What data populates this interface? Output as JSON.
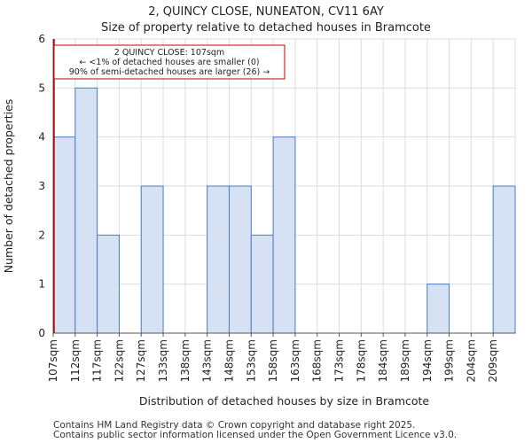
{
  "header": {
    "title": "2, QUINCY CLOSE, NUNEATON, CV11 6AY",
    "subtitle": "Size of property relative to detached houses in Bramcote"
  },
  "footer": {
    "line1": "Contains HM Land Registry data © Crown copyright and database right 2025.",
    "line2": "Contains public sector information licensed under the Open Government Licence v3.0."
  },
  "colors": {
    "bar_fill": "#d6e2f3",
    "bar_stroke": "#4a7cc7",
    "marker": "#c00000",
    "grid": "#d9dde6"
  },
  "chart_data": {
    "type": "bar",
    "title": "Size of property relative to detached houses in Bramcote",
    "xlabel": "Distribution of detached houses by size in Bramcote",
    "ylabel": "Number of detached properties",
    "categories": [
      "107sqm",
      "112sqm",
      "117sqm",
      "122sqm",
      "127sqm",
      "133sqm",
      "138sqm",
      "143sqm",
      "148sqm",
      "153sqm",
      "158sqm",
      "163sqm",
      "168sqm",
      "173sqm",
      "178sqm",
      "184sqm",
      "189sqm",
      "194sqm",
      "199sqm",
      "204sqm",
      "209sqm"
    ],
    "values": [
      4,
      5,
      2,
      0,
      3,
      0,
      0,
      3,
      3,
      2,
      4,
      0,
      0,
      0,
      0,
      0,
      0,
      1,
      0,
      0,
      3
    ],
    "ylim": [
      0,
      6
    ],
    "yticks": [
      0,
      1,
      2,
      3,
      4,
      5,
      6
    ],
    "grid": true,
    "marker": {
      "value_label": "107sqm",
      "bin_index": 0,
      "annotation": [
        "2 QUINCY CLOSE: 107sqm",
        "← <1% of detached houses are smaller (0)",
        "90% of semi-detached houses are larger (26) →"
      ]
    }
  }
}
